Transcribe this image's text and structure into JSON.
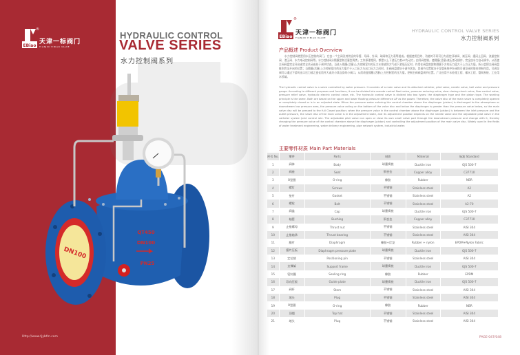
{
  "brand": {
    "logo_mark": "EBiao",
    "name_cn": "天津一标阀门",
    "name_en": "TIANJIN YIBIAO VALVE",
    "registered": "®"
  },
  "left_page": {
    "title_line1": "HYDRAULIC CONTROL",
    "title_line2": "VALVE SERIES",
    "title_cn": "水力控制阀系列",
    "url": "Http://www.tjybfm.com",
    "product_markings": {
      "body_text": [
        "QT450",
        "DN100",
        "PN25"
      ],
      "flange_label": "DN100"
    },
    "colors": {
      "brand_red": "#a82a33",
      "valve_blue": "#1f5fb0",
      "pilot_yellow": "#f2c400"
    }
  },
  "right_page": {
    "header_en": "HYDRAULIC CONTROL VALVE SERIES",
    "header_cn": "水力控制阀系列",
    "overview_title": "产品概述 Product Overview",
    "overview_cn": "水力控制阀就是用水压控制的阀门，它由一个主阀及其附设的导管、导阀、针阀、球阀和压力表等组成。根据使用目的、功能的不同可分为遥控浮球阀、减压阀、缓闭止回阀、流量控制阀、泄压阀、水力电动控制阀等。水力控制阀分隔膜型和活塞型两类，工作原理相同，都是以上下游压力差ΔP为动力，由导阀控制，使隔膜(活塞)液压差动操作，完全由水力自动调节，从而使主阀阀盘完全开启或完全关闭或处于调节状态。当进入隔膜(活塞)上方控制室内的压力水排放到大气或下游低压区时，作用在阀盘底部和隔膜下方的压力值大于上方压力值，所以会把主阀阀盘推到完全开启的位置；当隔膜(活塞)上方控制室内的压力值介于入口压力与出口压力之间时，主阀阀盘就处于调节状态，其调节位置取决于导管系统中针阀和可调导阀的联合控制作用。可调导阀可以通过下游的出口压力随之变化而开大或关小其自身的小阀口，从而改变隔膜(活塞)上方控制室的压力值，控制主阀阀盘调节位置。广泛应用于水处理工程、输水工程、管网系统、工业用水领域。",
    "overview_en": "The hydraulic control valve is a valve controlled by water pressure. It consists of a main valve and its attached catheter, pilot valve, needle valve, ball valve and pressure gauge. According to different purposes and functions, it can be divided into remote control float valve, pressure reducing valve, slow closing check valve, flow control valve, pressure relief valve, hydraulic electric control valve, etc. The hydraulic control valve is divided into two types: the diaphragm type and the piston type. The working principle is the same. Both are based on the upper and lower floating pressure difference ΔP as the power. Therefore, the valve disc of the main valve is completely opened or completely closed or is in an adjusted state. When the pressure water entering the control chamber above the diaphragm (piston) is discharged to the atmosphere or downstream low pressure area, the pressure value acting on the bottom of the valve disc and below the diaphragm is greater than the pressure value below, so the main valve disc will be pressed to the full Closed position; when the pressure value in the control chamber above the diaphragm (piston) is between the inlet pressure and the outlet pressure, the valve disc of the main valve is in the adjustment state, and its adjustment position depends on the needle valve and the adjustable pilot valve in the catheter system Joint control role. The adjustable pilot valve can open or close its own small valve port through the downstream pressure and change with it, thereby changing the pressure value of the control chamber above the diaphragm (piston) and controlling the adjustment position of the main valve disc. Widely used in the fields of water treatment engineering, water delivery engineering, pipe network system, industrial water.",
    "materials_title": "主要零件材质 Main Part Materials",
    "table": {
      "headers": [
        "序号 No.",
        "零件",
        "Parts",
        "材质",
        "Material",
        "标准 Standard"
      ],
      "rows": [
        [
          "1",
          "阀体",
          "Body",
          "球墨铸铁",
          "Ductile iron",
          "GJS 500-7"
        ],
        [
          "2",
          "阀座",
          "Seat",
          "铜合金",
          "Copper alloy",
          "C37710"
        ],
        [
          "3",
          "O型圈",
          "O-ring",
          "橡胶",
          "Rubber",
          "NBR"
        ],
        [
          "4",
          "螺钉",
          "Screws",
          "不锈钢",
          "Stainless steel",
          "A2"
        ],
        [
          "5",
          "垫片",
          "Gasket",
          "不锈钢",
          "Stainless steel",
          "A2"
        ],
        [
          "6",
          "螺栓",
          "Bolt",
          "不锈钢",
          "Stainless steel",
          "A2-70"
        ],
        [
          "7",
          "阀盖",
          "Cap",
          "球墨铸铁",
          "Ductile iron",
          "GJS 500-7"
        ],
        [
          "8",
          "轴套",
          "Bushing",
          "铜合金",
          "Copper alloy",
          "C37710"
        ],
        [
          "9",
          "止推螺母",
          "Thrust nut",
          "不锈钢",
          "Stainless steel",
          "AISI 304"
        ],
        [
          "10",
          "止推轴承",
          "Thrust bearing",
          "不锈钢",
          "Stainless steel",
          "AISI 304"
        ],
        [
          "11",
          "膜片",
          "Diaphragm",
          "橡胶+尼龙",
          "Rubber + nylon",
          "EPDM+Nylon Fabric"
        ],
        [
          "12",
          "膜片压板",
          "Diaphragm pressure plate",
          "球墨铸铁",
          "Ductile iron",
          "GJS 500-7"
        ],
        [
          "13",
          "定位销",
          "Positioning pin",
          "不锈钢",
          "Stainless steel",
          "AISI 304"
        ],
        [
          "14",
          "支撑架",
          "Support frame",
          "球墨铸铁",
          "Ductile iron",
          "GJS 500-7"
        ],
        [
          "15",
          "密封圈",
          "Sealing ring",
          "橡胶",
          "Rubber",
          "EPDM"
        ],
        [
          "16",
          "导向压板",
          "Guide plate",
          "球墨铸铁",
          "Ductile iron",
          "GJS 500-7"
        ],
        [
          "17",
          "阀杆",
          "Stem",
          "不锈钢",
          "Stainless steel",
          "AISI 304"
        ],
        [
          "18",
          "堵头",
          "Plug",
          "不锈钢",
          "Stainless steel",
          "AISI 304"
        ],
        [
          "19",
          "O型圈",
          "O-ring",
          "橡胶",
          "Rubber",
          "NBR"
        ],
        [
          "20",
          "顶帽",
          "Top hat",
          "不锈钢",
          "Stainless steel",
          "AISI 304"
        ],
        [
          "21",
          "堵头",
          "Plug",
          "不锈钢",
          "Stainless steel",
          "AISI 304"
        ]
      ]
    },
    "page_number": "PAGE-047/048"
  }
}
